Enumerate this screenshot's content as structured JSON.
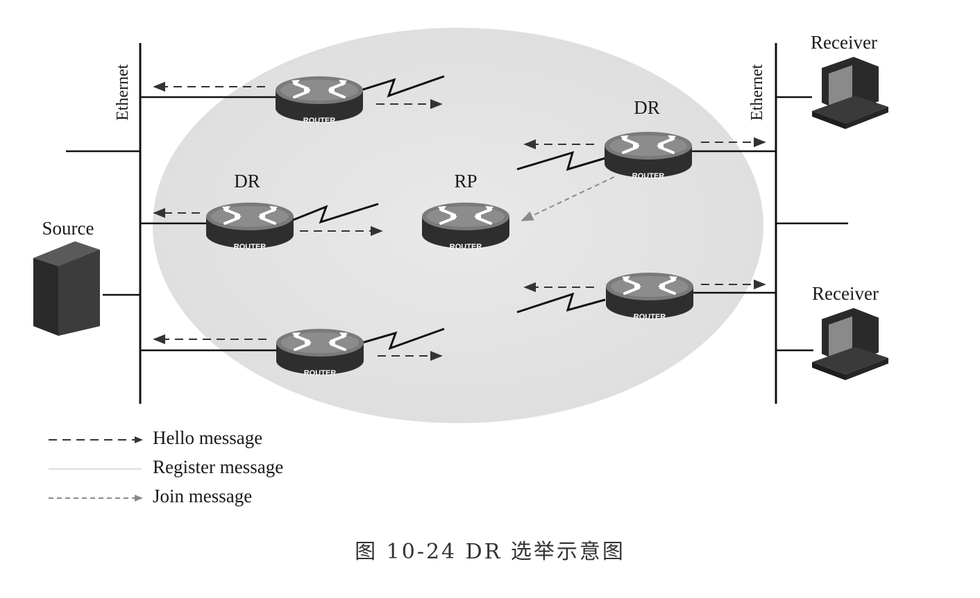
{
  "labels": {
    "ethernet_left": "Ethernet",
    "ethernet_right": "Ethernet",
    "source": "Source",
    "receiver_top": "Receiver",
    "receiver_bottom": "Receiver",
    "dr_left": "DR",
    "dr_right": "DR",
    "rp": "RP"
  },
  "routers": [
    {
      "id": "router-top-left",
      "badge": "ROUTER"
    },
    {
      "id": "router-dr-left",
      "badge": "ROUTER"
    },
    {
      "id": "router-bottom-left",
      "badge": "ROUTER"
    },
    {
      "id": "router-rp",
      "badge": "ROUTER"
    },
    {
      "id": "router-dr-right",
      "badge": "ROUTER"
    },
    {
      "id": "router-bottom-right",
      "badge": "ROUTER"
    }
  ],
  "legend": [
    {
      "label": "Hello message",
      "style": "dashed-dark"
    },
    {
      "label": "Register message",
      "style": "solid-faint"
    },
    {
      "label": "Join message",
      "style": "dashed-light"
    }
  ],
  "caption": "图 10-24   DR 选举示意图",
  "colors": {
    "cloud": "#e4e4e4",
    "router_body": "#4a4a4a",
    "router_top": "#6e6e6e",
    "line": "#111111",
    "hello_arrow": "#333333",
    "join_arrow": "#8a8a8a",
    "register_line": "#d9d9d9"
  }
}
